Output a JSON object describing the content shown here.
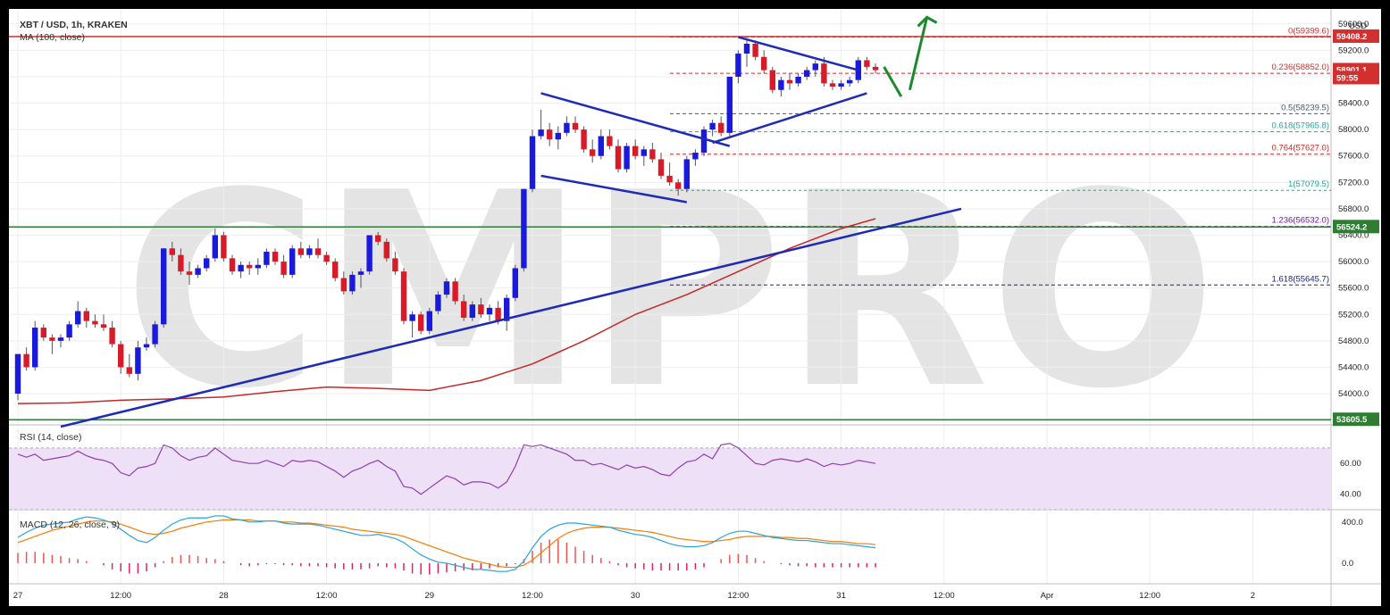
{
  "header": {
    "symbol": "XBT / USD, 1h, KRAKEN",
    "ma_label": "MA (100, close)",
    "rsi_label": "RSI (14, close)",
    "macd_label": "MACD (12, 26, close, 9)",
    "currency": "USD",
    "watermark": "CMPRO"
  },
  "price_tags": [
    {
      "label": "59408.2",
      "value": 59408.2,
      "color": "#d32f2f"
    },
    {
      "label": "58901.1",
      "value": 58901.1,
      "color": "#d32f2f"
    },
    {
      "label": "59:55",
      "value": 58780,
      "color": "#d32f2f"
    },
    {
      "label": "56524.2",
      "value": 56524.2,
      "color": "#2e7d32"
    },
    {
      "label": "53605.5",
      "value": 53605.5,
      "color": "#2e7d32"
    }
  ],
  "chart_data": {
    "type": "candlestick",
    "y_ticks": [
      "59600.0",
      "59200.0",
      "58800.0",
      "58400.0",
      "58000.0",
      "57600.0",
      "57200.0",
      "56800.0",
      "56400.0",
      "56000.0",
      "55600.0",
      "55200.0",
      "54800.0",
      "54400.0",
      "54000.0"
    ],
    "y_tick_values": [
      59600,
      59200,
      58800,
      58400,
      58000,
      57600,
      57200,
      56800,
      56400,
      56000,
      55600,
      55200,
      54800,
      54400,
      54000
    ],
    "ylim": [
      53500,
      59800
    ],
    "x_ticks": [
      "27",
      "12:00",
      "28",
      "12:00",
      "29",
      "12:00",
      "30",
      "12:00",
      "31",
      "12:00",
      "Apr",
      "12:00",
      "2"
    ],
    "x_tick_index": [
      0,
      12,
      24,
      36,
      48,
      60,
      72,
      84,
      96,
      108,
      120,
      132,
      144
    ],
    "candles": [
      [
        54000,
        54600,
        53900,
        54600
      ],
      [
        54600,
        54700,
        54350,
        54400
      ],
      [
        54400,
        55100,
        54350,
        55000
      ],
      [
        55000,
        55050,
        54800,
        54850
      ],
      [
        54850,
        54900,
        54600,
        54800
      ],
      [
        54800,
        54900,
        54700,
        54850
      ],
      [
        54850,
        55100,
        54800,
        55050
      ],
      [
        55050,
        55400,
        55000,
        55250
      ],
      [
        55250,
        55300,
        55000,
        55100
      ],
      [
        55100,
        55200,
        55000,
        55050
      ],
      [
        55050,
        55200,
        54950,
        55000
      ],
      [
        55000,
        55100,
        54700,
        54750
      ],
      [
        54750,
        54800,
        54300,
        54400
      ],
      [
        54400,
        54600,
        54250,
        54300
      ],
      [
        54300,
        54800,
        54200,
        54700
      ],
      [
        54700,
        54850,
        54650,
        54750
      ],
      [
        54750,
        55100,
        54700,
        55050
      ],
      [
        55050,
        56200,
        55000,
        56200
      ],
      [
        56200,
        56300,
        56000,
        56100
      ],
      [
        56100,
        56200,
        55800,
        55850
      ],
      [
        55850,
        56000,
        55650,
        55800
      ],
      [
        55800,
        55950,
        55750,
        55900
      ],
      [
        55900,
        56100,
        55850,
        56050
      ],
      [
        56050,
        56500,
        56000,
        56400
      ],
      [
        56400,
        56450,
        56000,
        56050
      ],
      [
        56050,
        56100,
        55800,
        55850
      ],
      [
        55850,
        56000,
        55750,
        55950
      ],
      [
        55950,
        56000,
        55800,
        55900
      ],
      [
        55900,
        56050,
        55800,
        55950
      ],
      [
        55950,
        56200,
        55900,
        56150
      ],
      [
        56150,
        56200,
        55950,
        56000
      ],
      [
        56000,
        56100,
        55750,
        55800
      ],
      [
        55800,
        56250,
        55750,
        56200
      ],
      [
        56200,
        56300,
        56050,
        56100
      ],
      [
        56100,
        56250,
        56050,
        56200
      ],
      [
        56200,
        56350,
        56050,
        56100
      ],
      [
        56100,
        56150,
        55950,
        56000
      ],
      [
        56000,
        56050,
        55700,
        55750
      ],
      [
        55750,
        55850,
        55500,
        55550
      ],
      [
        55550,
        55850,
        55500,
        55800
      ],
      [
        55800,
        55900,
        55600,
        55850
      ],
      [
        55850,
        56400,
        55800,
        56400
      ],
      [
        56400,
        56450,
        56250,
        56300
      ],
      [
        56300,
        56350,
        56000,
        56050
      ],
      [
        56050,
        56150,
        55800,
        55850
      ],
      [
        55850,
        55900,
        55050,
        55100
      ],
      [
        55100,
        55250,
        54850,
        55200
      ],
      [
        55200,
        55250,
        54900,
        54950
      ],
      [
        54950,
        55300,
        54900,
        55250
      ],
      [
        55250,
        55550,
        55200,
        55500
      ],
      [
        55500,
        55750,
        55450,
        55700
      ],
      [
        55700,
        55750,
        55350,
        55400
      ],
      [
        55400,
        55500,
        55100,
        55150
      ],
      [
        55150,
        55400,
        55100,
        55350
      ],
      [
        55350,
        55450,
        55150,
        55200
      ],
      [
        55200,
        55350,
        55100,
        55300
      ],
      [
        55300,
        55400,
        55050,
        55100
      ],
      [
        55100,
        55500,
        54950,
        55450
      ],
      [
        55450,
        55950,
        55400,
        55900
      ],
      [
        55900,
        57100,
        55850,
        57100
      ],
      [
        57100,
        58000,
        57050,
        57900
      ],
      [
        57900,
        58300,
        57850,
        58000
      ],
      [
        58000,
        58100,
        57750,
        57850
      ],
      [
        57850,
        58050,
        57700,
        57950
      ],
      [
        57950,
        58200,
        57900,
        58100
      ],
      [
        58100,
        58200,
        57950,
        58000
      ],
      [
        58000,
        58050,
        57650,
        57700
      ],
      [
        57700,
        57850,
        57500,
        57600
      ],
      [
        57600,
        58000,
        57550,
        57900
      ],
      [
        57900,
        58000,
        57700,
        57750
      ],
      [
        57750,
        57850,
        57350,
        57400
      ],
      [
        57400,
        57800,
        57350,
        57750
      ],
      [
        57750,
        57850,
        57550,
        57600
      ],
      [
        57600,
        57750,
        57450,
        57700
      ],
      [
        57700,
        57800,
        57500,
        57550
      ],
      [
        57550,
        57650,
        57250,
        57300
      ],
      [
        57300,
        57500,
        57150,
        57200
      ],
      [
        57200,
        57250,
        57000,
        57100
      ],
      [
        57100,
        57600,
        57050,
        57550
      ],
      [
        57550,
        57700,
        57450,
        57650
      ],
      [
        57650,
        58050,
        57600,
        58000
      ],
      [
        58000,
        58150,
        57900,
        58100
      ],
      [
        58100,
        58200,
        57900,
        57950
      ],
      [
        57950,
        58800,
        57900,
        58800
      ],
      [
        58800,
        59200,
        58700,
        59150
      ],
      [
        59150,
        59350,
        58950,
        59300
      ],
      [
        59300,
        59350,
        59050,
        59100
      ],
      [
        59100,
        59200,
        58850,
        58900
      ],
      [
        58900,
        58950,
        58550,
        58600
      ],
      [
        58600,
        58800,
        58500,
        58750
      ],
      [
        58750,
        58850,
        58600,
        58700
      ],
      [
        58700,
        58850,
        58650,
        58800
      ],
      [
        58800,
        58950,
        58750,
        58900
      ],
      [
        58900,
        59050,
        58800,
        59000
      ],
      [
        59000,
        59100,
        58650,
        58700
      ],
      [
        58700,
        58750,
        58600,
        58650
      ],
      [
        58650,
        58750,
        58600,
        58700
      ],
      [
        58700,
        58800,
        58650,
        58750
      ],
      [
        58750,
        59100,
        58700,
        59050
      ],
      [
        59050,
        59100,
        58900,
        58950
      ],
      [
        58950,
        59000,
        58850,
        58900
      ]
    ],
    "ma100": [
      [
        0,
        53850
      ],
      [
        6,
        53860
      ],
      [
        12,
        53900
      ],
      [
        18,
        53920
      ],
      [
        24,
        53950
      ],
      [
        30,
        54030
      ],
      [
        36,
        54100
      ],
      [
        42,
        54080
      ],
      [
        48,
        54050
      ],
      [
        54,
        54200
      ],
      [
        60,
        54450
      ],
      [
        66,
        54800
      ],
      [
        72,
        55200
      ],
      [
        78,
        55500
      ],
      [
        84,
        55850
      ],
      [
        90,
        56200
      ],
      [
        96,
        56500
      ],
      [
        100,
        56650
      ]
    ],
    "trendlines": [
      {
        "from": [
          5,
          53500
        ],
        "to": [
          110,
          56800
        ]
      },
      {
        "from": [
          61,
          58550
        ],
        "to": [
          83,
          57750
        ]
      },
      {
        "from": [
          61,
          57300
        ],
        "to": [
          78,
          56900
        ]
      },
      {
        "from": [
          84,
          59400
        ],
        "to": [
          98,
          58900
        ]
      },
      {
        "from": [
          81,
          57800
        ],
        "to": [
          99,
          58550
        ]
      }
    ],
    "fib_levels": [
      {
        "label": "0(59399.6)",
        "value": 59399.6,
        "color": "#d32f2f",
        "dash": "4,3",
        "solid_extra": true
      },
      {
        "label": "0.236(58852.0)",
        "value": 58852.0,
        "color": "#d32f2f",
        "dash": "4,3"
      },
      {
        "label": "0.5(58239.5)",
        "value": 58239.5,
        "color": "#455a64",
        "dash": "4,3"
      },
      {
        "label": "0.618(57965.8)",
        "value": 57965.8,
        "color": "#26a69a",
        "dash": "4,3"
      },
      {
        "label": "0.764(57627.0)",
        "value": 57627.0,
        "color": "#c62828",
        "dash": "4,3"
      },
      {
        "label": "1(57079.5)",
        "value": 57079.5,
        "color": "#26a69a",
        "dash": "3,3"
      },
      {
        "label": "1.236(56532.0)",
        "value": 56532.0,
        "color": "#6a1b9a",
        "dash": "4,3"
      },
      {
        "label": "1.618(55645.7)",
        "value": 55645.7,
        "color": "#1a237e",
        "dash": "4,3"
      }
    ],
    "horizontal_levels": [
      {
        "value": 56524.2,
        "color": "#2e7d32"
      },
      {
        "value": 53605.5,
        "color": "#2e7d32"
      },
      {
        "value": 59408.2,
        "color": "#d32f2f"
      }
    ],
    "rsi": {
      "ticks": [
        "60.00",
        "40.00"
      ],
      "tick_values": [
        60,
        40
      ],
      "band": [
        30,
        70
      ],
      "values": [
        66,
        64,
        66,
        62,
        63,
        64,
        65,
        68,
        65,
        63,
        62,
        60,
        54,
        52,
        57,
        58,
        60,
        72,
        70,
        65,
        62,
        64,
        65,
        70,
        66,
        62,
        61,
        60,
        60,
        62,
        60,
        58,
        62,
        61,
        62,
        61,
        58,
        55,
        51,
        55,
        57,
        60,
        62,
        58,
        55,
        45,
        44,
        40,
        44,
        48,
        52,
        50,
        46,
        48,
        48,
        47,
        44,
        48,
        58,
        72,
        71,
        72,
        70,
        68,
        66,
        62,
        62,
        59,
        60,
        58,
        56,
        59,
        57,
        58,
        56,
        53,
        52,
        57,
        61,
        62,
        66,
        63,
        72,
        73,
        70,
        65,
        60,
        59,
        62,
        63,
        62,
        61,
        63,
        61,
        58,
        60,
        59,
        60,
        62,
        61,
        60
      ]
    },
    "macd": {
      "ticks": [
        "400.0",
        "0.0"
      ],
      "tick_values": [
        400,
        0
      ],
      "macd_line": [
        250,
        300,
        340,
        370,
        380,
        390,
        400,
        430,
        450,
        440,
        420,
        390,
        330,
        270,
        220,
        200,
        250,
        320,
        380,
        420,
        440,
        440,
        440,
        460,
        460,
        430,
        420,
        400,
        400,
        410,
        410,
        390,
        380,
        380,
        380,
        370,
        350,
        330,
        310,
        290,
        270,
        270,
        280,
        260,
        240,
        200,
        140,
        80,
        40,
        10,
        0,
        -20,
        -40,
        -60,
        -60,
        -70,
        -80,
        -80,
        -60,
        20,
        150,
        260,
        330,
        370,
        390,
        390,
        380,
        370,
        360,
        350,
        320,
        300,
        280,
        270,
        250,
        220,
        190,
        170,
        160,
        160,
        170,
        200,
        250,
        290,
        310,
        310,
        290,
        270,
        250,
        240,
        230,
        220,
        220,
        210,
        200,
        190,
        190,
        180,
        170,
        160,
        150
      ],
      "signal_line": [
        200,
        230,
        260,
        290,
        320,
        340,
        360,
        380,
        400,
        410,
        410,
        400,
        380,
        350,
        320,
        290,
        280,
        290,
        310,
        340,
        360,
        380,
        400,
        410,
        420,
        420,
        420,
        420,
        410,
        410,
        410,
        400,
        400,
        390,
        390,
        380,
        370,
        360,
        350,
        330,
        320,
        310,
        300,
        290,
        280,
        260,
        230,
        200,
        170,
        140,
        110,
        80,
        50,
        30,
        10,
        -10,
        -30,
        -40,
        -40,
        -20,
        30,
        100,
        170,
        240,
        290,
        320,
        340,
        350,
        350,
        350,
        340,
        330,
        320,
        310,
        300,
        280,
        260,
        240,
        230,
        220,
        210,
        210,
        220,
        230,
        250,
        260,
        260,
        260,
        260,
        250,
        250,
        240,
        240,
        230,
        220,
        210,
        210,
        200,
        190,
        190,
        180
      ],
      "histogram": [
        100,
        110,
        110,
        100,
        80,
        70,
        50,
        40,
        20,
        0,
        -20,
        -60,
        -80,
        -100,
        -100,
        -80,
        -40,
        20,
        60,
        80,
        80,
        70,
        50,
        40,
        20,
        0,
        -20,
        -30,
        -20,
        -10,
        -10,
        -20,
        -20,
        -30,
        -30,
        -30,
        -40,
        -50,
        -60,
        -60,
        -60,
        -50,
        -30,
        -40,
        -50,
        -70,
        -100,
        -110,
        -110,
        -100,
        -90,
        -80,
        -70,
        -70,
        -60,
        -50,
        -40,
        -30,
        -10,
        40,
        120,
        200,
        230,
        230,
        200,
        160,
        120,
        80,
        50,
        20,
        -20,
        -40,
        -50,
        -60,
        -70,
        -70,
        -70,
        -70,
        -70,
        -60,
        -40,
        0,
        40,
        80,
        90,
        80,
        50,
        20,
        0,
        -10,
        -20,
        -30,
        -30,
        -40,
        -40,
        -40,
        -40,
        -40,
        -40,
        -40,
        -40
      ]
    },
    "arrows": [
      {
        "from": [
          101,
          58950
        ],
        "to": [
          103,
          58500
        ],
        "color": "#1b8a2e"
      },
      {
        "from": [
          104,
          58600
        ],
        "to": [
          106,
          59700
        ],
        "color": "#1b8a2e"
      }
    ]
  }
}
